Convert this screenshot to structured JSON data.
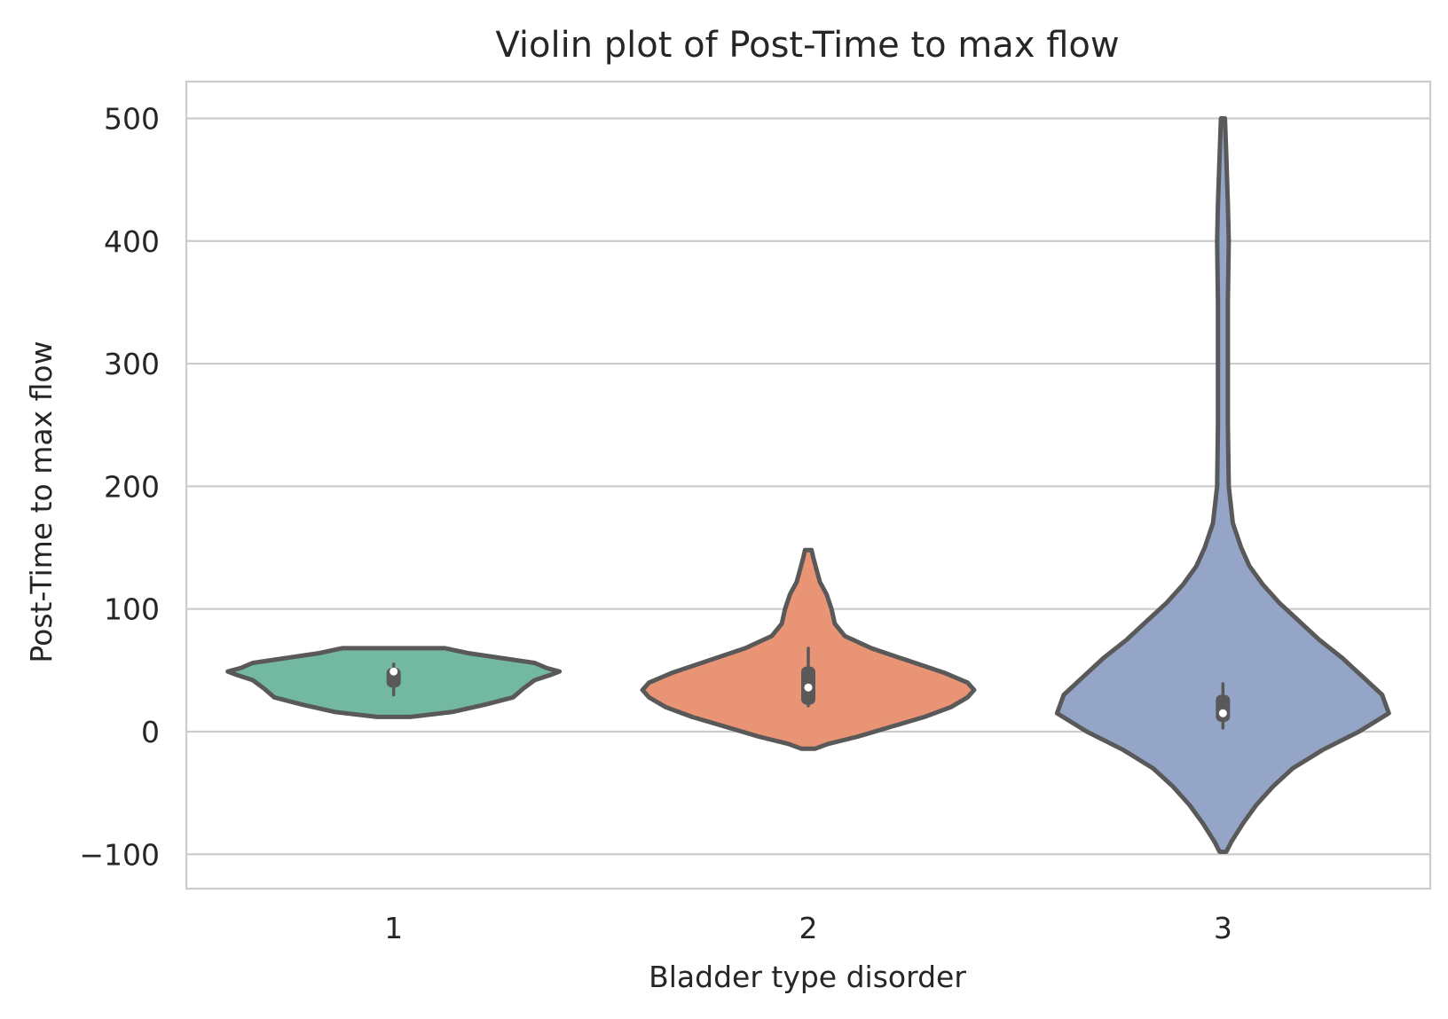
{
  "chart_data": {
    "type": "violin",
    "title": "Violin plot of Post-Time to max flow",
    "xlabel": "Bladder type disorder",
    "ylabel": "Post-Time to max flow",
    "categories": [
      "1",
      "2",
      "3"
    ],
    "ylim": [
      -128,
      530
    ],
    "yticks": [
      -100,
      0,
      100,
      200,
      300,
      400,
      500
    ],
    "ytick_labels": [
      "−100",
      "0",
      "100",
      "200",
      "300",
      "400",
      "500"
    ],
    "grid": true,
    "colors": [
      "#73b8a0",
      "#e99575",
      "#94a5c8"
    ],
    "outline_color": "#595959",
    "series": [
      {
        "category": "1",
        "range": [
          12,
          68
        ],
        "box": {
          "q1": 36,
          "q3": 52,
          "whisker_low": 30,
          "whisker_high": 55,
          "median": 49
        },
        "density": [
          [
            12,
            0.1
          ],
          [
            16,
            0.35
          ],
          [
            22,
            0.55
          ],
          [
            28,
            0.72
          ],
          [
            35,
            0.78
          ],
          [
            42,
            0.85
          ],
          [
            46,
            0.94
          ],
          [
            49,
            1.0
          ],
          [
            52,
            0.92
          ],
          [
            56,
            0.85
          ],
          [
            60,
            0.65
          ],
          [
            64,
            0.45
          ],
          [
            68,
            0.31
          ]
        ]
      },
      {
        "category": "2",
        "range": [
          -14,
          148
        ],
        "box": {
          "q1": 22,
          "q3": 53,
          "whisker_low": 21,
          "whisker_high": 68,
          "median": 36
        },
        "density": [
          [
            -14,
            0.04
          ],
          [
            -10,
            0.12
          ],
          [
            -4,
            0.3
          ],
          [
            4,
            0.5
          ],
          [
            12,
            0.7
          ],
          [
            20,
            0.86
          ],
          [
            28,
            0.96
          ],
          [
            34,
            1.0
          ],
          [
            40,
            0.96
          ],
          [
            48,
            0.82
          ],
          [
            58,
            0.6
          ],
          [
            68,
            0.38
          ],
          [
            78,
            0.22
          ],
          [
            88,
            0.16
          ],
          [
            100,
            0.14
          ],
          [
            112,
            0.11
          ],
          [
            122,
            0.07
          ],
          [
            132,
            0.05
          ],
          [
            142,
            0.03
          ],
          [
            148,
            0.02
          ]
        ]
      },
      {
        "category": "3",
        "range": [
          -98,
          500
        ],
        "box": {
          "q1": 8,
          "q3": 30,
          "whisker_low": 3,
          "whisker_high": 39,
          "median": 15
        },
        "density": [
          [
            -98,
            0.02
          ],
          [
            -90,
            0.05
          ],
          [
            -75,
            0.12
          ],
          [
            -60,
            0.2
          ],
          [
            -45,
            0.3
          ],
          [
            -30,
            0.42
          ],
          [
            -15,
            0.6
          ],
          [
            0,
            0.82
          ],
          [
            15,
            1.0
          ],
          [
            30,
            0.96
          ],
          [
            45,
            0.84
          ],
          [
            60,
            0.72
          ],
          [
            75,
            0.58
          ],
          [
            90,
            0.46
          ],
          [
            105,
            0.34
          ],
          [
            120,
            0.24
          ],
          [
            135,
            0.16
          ],
          [
            150,
            0.11
          ],
          [
            170,
            0.06
          ],
          [
            200,
            0.035
          ],
          [
            250,
            0.03
          ],
          [
            300,
            0.03
          ],
          [
            350,
            0.03
          ],
          [
            400,
            0.035
          ],
          [
            430,
            0.03
          ],
          [
            470,
            0.02
          ],
          [
            500,
            0.012
          ]
        ]
      }
    ]
  }
}
